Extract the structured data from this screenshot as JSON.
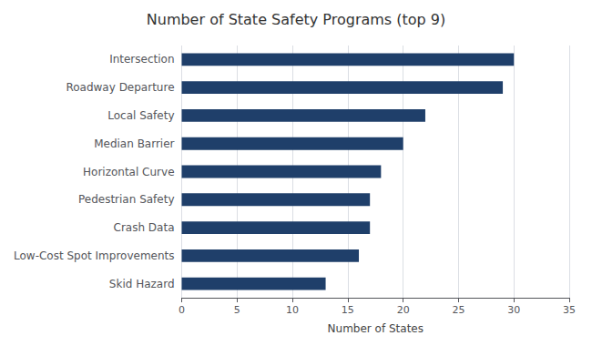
{
  "chart_data": {
    "type": "bar",
    "orientation": "horizontal",
    "title": "Number of State Safety Programs (top 9)",
    "categories": [
      "Skid Hazard",
      "Low-Cost Spot Improvements",
      "Crash Data",
      "Pedestrian Safety",
      "Horizontal Curve",
      "Median Barrier",
      "Local Safety",
      "Roadway Departure",
      "Intersection"
    ],
    "values": [
      13,
      16,
      17,
      17,
      18,
      20,
      22,
      29,
      30
    ],
    "color": "#1F3F6A",
    "xlabel": "Number of States",
    "xlim": [
      0,
      35
    ],
    "xticks": [
      0,
      5,
      10,
      15,
      20,
      25,
      30,
      35
    ],
    "grid": true
  }
}
